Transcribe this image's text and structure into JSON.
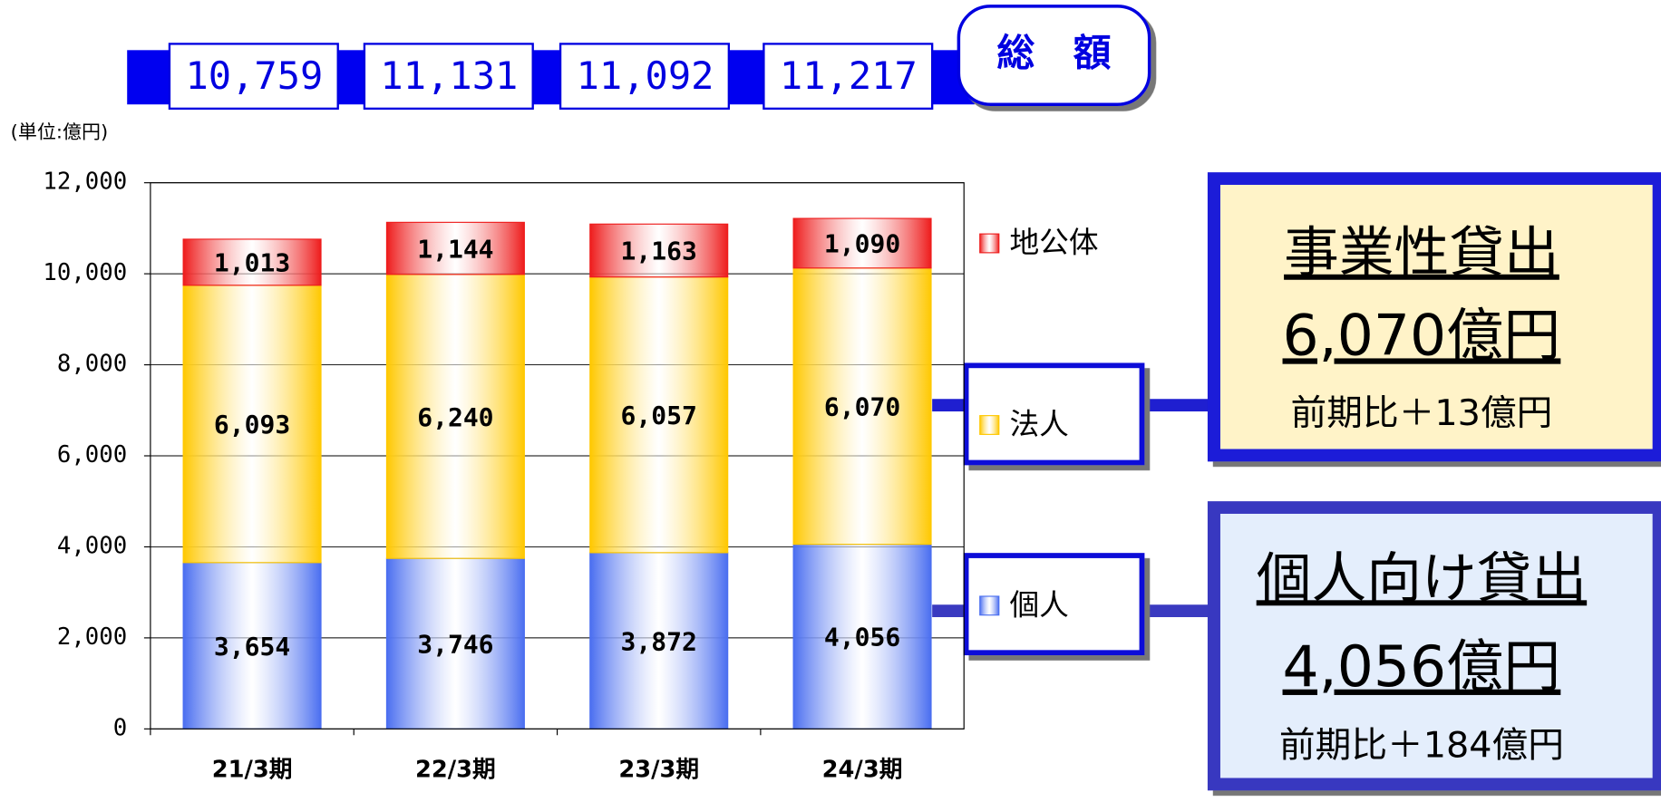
{
  "chart_data": {
    "type": "stacked_bar",
    "title": "総　額",
    "unit_label": "(単位:億円)",
    "categories": [
      "21/3期",
      "22/3期",
      "23/3期",
      "24/3期"
    ],
    "series": [
      {
        "name": "個人",
        "color": "#4a6ef0",
        "values": [
          3654,
          3746,
          3872,
          4056
        ],
        "value_labels": [
          "3,654",
          "3,746",
          "3,872",
          "4,056"
        ]
      },
      {
        "name": "法人",
        "color": "#ffc800",
        "values": [
          6093,
          6240,
          6057,
          6070
        ],
        "value_labels": [
          "6,093",
          "6,240",
          "6,057",
          "6,070"
        ]
      },
      {
        "name": "地公体",
        "color": "#ee1c1c",
        "values": [
          1013,
          1144,
          1163,
          1090
        ],
        "value_labels": [
          "1,013",
          "1,144",
          "1,163",
          "1,090"
        ]
      }
    ],
    "totals": {
      "values": [
        10759,
        11131,
        11092,
        11217
      ],
      "value_labels": [
        "10,759",
        "11,131",
        "11,092",
        "11,217"
      ]
    },
    "ylim": [
      0,
      12000
    ],
    "yticks": [
      0,
      {
        "value": 2000,
        "label": "2,000"
      },
      {
        "value": 4000,
        "label": "4,000"
      },
      {
        "value": 6000,
        "label": "6,000"
      },
      {
        "value": 8000,
        "label": "8,000"
      },
      {
        "value": 10000,
        "label": "10,000"
      },
      {
        "value": 12000,
        "label": "12,000"
      }
    ],
    "grid": true,
    "annotations": [
      {
        "title": "事業性貸出",
        "amount": "6,070億円",
        "change": "前期比＋13億円"
      },
      {
        "title": "個人向け貸出",
        "amount": "4,056億円",
        "change": "前期比＋184億円"
      }
    ]
  }
}
